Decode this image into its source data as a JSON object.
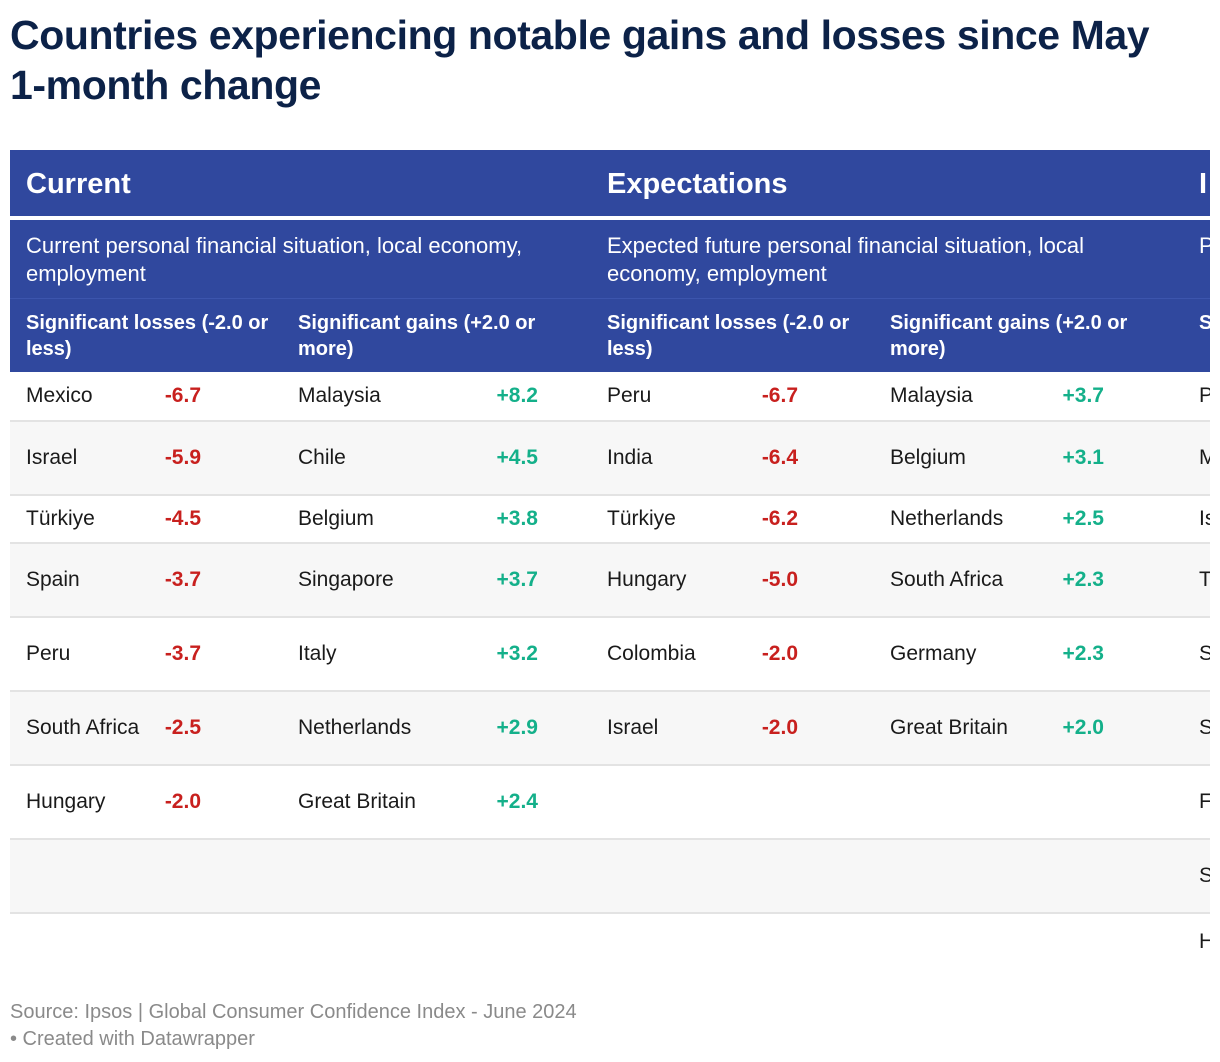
{
  "title_line1": "Countries experiencing notable gains and losses since May",
  "title_line2": "1-month change",
  "chart_data": {
    "type": "table",
    "groups": [
      {
        "title": "Current",
        "description": "Current personal financial situation, local economy, employment",
        "losses_header": "Significant losses (-2.0 or less)",
        "gains_header": "Significant gains (+2.0 or more)",
        "losses": [
          {
            "country": "Mexico",
            "value": "-6.7"
          },
          {
            "country": "Israel",
            "value": "-5.9"
          },
          {
            "country": "Türkiye",
            "value": "-4.5"
          },
          {
            "country": "Spain",
            "value": "-3.7"
          },
          {
            "country": "Peru",
            "value": "-3.7"
          },
          {
            "country": "South Africa",
            "value": "-2.5"
          },
          {
            "country": "Hungary",
            "value": "-2.0"
          }
        ],
        "gains": [
          {
            "country": "Malaysia",
            "value": "+8.2"
          },
          {
            "country": "Chile",
            "value": "+4.5"
          },
          {
            "country": "Belgium",
            "value": "+3.8"
          },
          {
            "country": "Singapore",
            "value": "+3.7"
          },
          {
            "country": "Italy",
            "value": "+3.2"
          },
          {
            "country": "Netherlands",
            "value": "+2.9"
          },
          {
            "country": "Great Britain",
            "value": "+2.4"
          }
        ]
      },
      {
        "title": "Expectations",
        "description": "Expected future personal financial situation, local economy, employment",
        "losses_header": "Significant losses (-2.0 or less)",
        "gains_header": "Significant gains (+2.0 or more)",
        "losses": [
          {
            "country": "Peru",
            "value": "-6.7"
          },
          {
            "country": "India",
            "value": "-6.4"
          },
          {
            "country": "Türkiye",
            "value": "-6.2"
          },
          {
            "country": "Hungary",
            "value": "-5.0"
          },
          {
            "country": "Colombia",
            "value": "-2.0"
          },
          {
            "country": "Israel",
            "value": "-2.0"
          }
        ],
        "gains": [
          {
            "country": "Malaysia",
            "value": "+3.7"
          },
          {
            "country": "Belgium",
            "value": "+3.1"
          },
          {
            "country": "Netherlands",
            "value": "+2.5"
          },
          {
            "country": "South Africa",
            "value": "+2.3"
          },
          {
            "country": "Germany",
            "value": "+2.3"
          },
          {
            "country": "Great Britain",
            "value": "+2.0"
          }
        ]
      },
      {
        "title": "I",
        "description": "P f",
        "losses_header": "S (-",
        "gains_header": "",
        "losses": [
          {
            "country": "P",
            "value": ""
          },
          {
            "country": "M",
            "value": ""
          },
          {
            "country": "Is",
            "value": ""
          },
          {
            "country": "T",
            "value": ""
          },
          {
            "country": "S A",
            "value": ""
          },
          {
            "country": "S",
            "value": ""
          },
          {
            "country": "F",
            "value": ""
          },
          {
            "country": "S K",
            "value": ""
          },
          {
            "country": "H",
            "value": ""
          }
        ],
        "gains": []
      }
    ]
  },
  "source_line1": "Source: Ipsos | Global Consumer Confidence Index - June 2024",
  "source_line2": "• Created with Datawrapper",
  "colors": {
    "header_bg": "#30489e",
    "title": "#0c2248",
    "negative": "#c8201e",
    "positive": "#14b08a",
    "row_alt": "#f7f7f7",
    "footer_text": "#8a8a8a"
  }
}
